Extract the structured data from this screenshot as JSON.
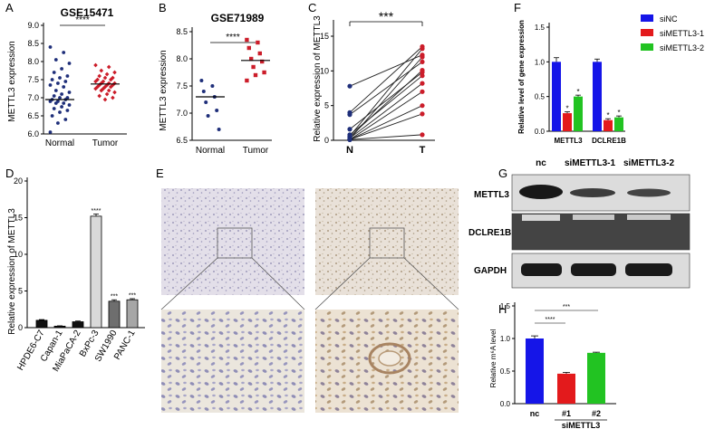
{
  "panels": {
    "A": {
      "letter": "A",
      "title": "GSE15471",
      "ylabel": "METTL3 expression",
      "sig": "****",
      "categories": [
        "Normal",
        "Tumor"
      ],
      "yticks": [
        "6.0",
        "6.5",
        "7.0",
        "7.5",
        "8.0",
        "8.5",
        "9.0"
      ]
    },
    "B": {
      "letter": "B",
      "title": "GSE71989",
      "ylabel": "METTL3 expression",
      "sig": "****",
      "categories": [
        "Normal",
        "Tumor"
      ],
      "yticks": [
        "6.5",
        "7.0",
        "7.5",
        "8.0",
        "8.5"
      ]
    },
    "C": {
      "letter": "C",
      "ylabel": "Relative expression of METTL3",
      "sig": "***",
      "categories": [
        "N",
        "T"
      ],
      "yticks": [
        "0",
        "5",
        "10",
        "15"
      ]
    },
    "D": {
      "letter": "D",
      "ylabel": "Relative expression of METTL3",
      "yticks": [
        "0",
        "5",
        "10",
        "15",
        "20"
      ],
      "categories": [
        "HPDE6-C7",
        "Capan-1",
        "MiaPaCA-2",
        "BxPc-3",
        "SW1990",
        "PANC-1"
      ],
      "bar_sigs": [
        "",
        "",
        "",
        "****",
        "***",
        "***"
      ]
    },
    "E": {
      "letter": "E"
    },
    "F": {
      "letter": "F",
      "ylabel": "Relative level of gene expression",
      "yticks": [
        "0.0",
        "0.5",
        "1.0",
        "1.5"
      ],
      "categories": [
        "METTL3",
        "DCLRE1B"
      ],
      "legend": [
        "siNC",
        "siMETTL3-1",
        "siMETTL3-2"
      ],
      "sig": "*"
    },
    "G": {
      "letter": "G",
      "lanes": [
        "nc",
        "siMETTL3-1",
        "siMETTL3-2"
      ],
      "rows": [
        "METTL3",
        "DCLRE1B",
        "GAPDH"
      ]
    },
    "H": {
      "letter": "H",
      "ylabel": "Relative m⁶A level",
      "yticks": [
        "0.0",
        "0.5",
        "1.0",
        "1.5"
      ],
      "categories": [
        "nc",
        "#1",
        "#2"
      ],
      "group_label": "siMETTL3",
      "sigs": [
        "****",
        "***"
      ]
    }
  },
  "colors": {
    "navy": "#1f2f7a",
    "red": "#cc1d2a",
    "blue": "#1515e8",
    "red_bar": "#e31a1c",
    "green": "#22c322",
    "lightgray": "#d9d9d9",
    "darkgray": "#6e6e6e",
    "midgray": "#a6a6a6"
  },
  "chart_data": [
    {
      "type": "scatter",
      "panel": "A",
      "title": "GSE15471",
      "ylabel": "METTL3 expression",
      "categories": [
        "Normal",
        "Tumor"
      ],
      "ylim": [
        6.0,
        9.0
      ],
      "series": [
        {
          "values": [
            8.4,
            8.25,
            8.05,
            7.95,
            7.8,
            7.7,
            7.6,
            7.55,
            7.5,
            7.45,
            7.4,
            7.35,
            7.3,
            7.2,
            7.15,
            7.1,
            7.05,
            7.0,
            7.0,
            6.95,
            6.95,
            6.9,
            6.9,
            6.85,
            6.85,
            6.8,
            6.75,
            6.7,
            6.65,
            6.6,
            6.5,
            6.4,
            6.3,
            6.05
          ]
        },
        {
          "values": [
            7.9,
            7.85,
            7.75,
            7.7,
            7.65,
            7.6,
            7.55,
            7.55,
            7.5,
            7.5,
            7.45,
            7.45,
            7.4,
            7.4,
            7.4,
            7.35,
            7.35,
            7.35,
            7.3,
            7.3,
            7.3,
            7.25,
            7.25,
            7.2,
            7.2,
            7.15,
            7.1,
            7.05,
            7.0,
            6.95
          ]
        }
      ],
      "medians": [
        6.95,
        7.38
      ]
    },
    {
      "type": "scatter",
      "panel": "B",
      "title": "GSE71989",
      "ylabel": "METTL3 expression",
      "categories": [
        "Normal",
        "Tumor"
      ],
      "ylim": [
        6.5,
        8.5
      ],
      "series": [
        {
          "values": [
            7.6,
            7.5,
            7.4,
            7.3,
            7.2,
            7.05,
            6.95,
            6.7
          ]
        },
        {
          "values": [
            8.35,
            8.3,
            8.2,
            8.1,
            8.0,
            7.95,
            7.85,
            7.75,
            7.7,
            7.6
          ]
        }
      ],
      "medians": [
        7.3,
        7.97
      ]
    },
    {
      "type": "line",
      "panel": "C",
      "ylabel": "Relative expression of METTL3",
      "categories": [
        "N",
        "T"
      ],
      "ylim": [
        0,
        15
      ],
      "pairs": [
        [
          7.8,
          12.3
        ],
        [
          4.0,
          13.5
        ],
        [
          3.7,
          11.3
        ],
        [
          1.6,
          9.8
        ],
        [
          0.8,
          9.3
        ],
        [
          0.6,
          13.2
        ],
        [
          0.5,
          10.1
        ],
        [
          0.3,
          8.2
        ],
        [
          0.2,
          12.0
        ],
        [
          0.1,
          7.0
        ],
        [
          0.1,
          5.0
        ],
        [
          0.1,
          3.8
        ],
        [
          0.1,
          0.8
        ]
      ]
    },
    {
      "type": "bar",
      "panel": "D",
      "ylabel": "Relative expression of METTL3",
      "categories": [
        "HPDE6-C7",
        "Capan-1",
        "MiaPaCA-2",
        "BxPc-3",
        "SW1990",
        "PANC-1"
      ],
      "values": [
        1.0,
        0.2,
        0.8,
        15.2,
        3.6,
        3.8
      ],
      "errors": [
        0.1,
        0.05,
        0.1,
        0.3,
        0.2,
        0.15
      ],
      "ylim": [
        0,
        20
      ]
    },
    {
      "type": "bar",
      "panel": "F",
      "ylabel": "Relative level of gene expression",
      "categories": [
        "METTL3",
        "DCLRE1B"
      ],
      "ylim": [
        0,
        1.5
      ],
      "series": [
        {
          "name": "siNC",
          "values": [
            1.0,
            1.0
          ],
          "errors": [
            0.06,
            0.04
          ]
        },
        {
          "name": "siMETTL3-1",
          "values": [
            0.26,
            0.16
          ],
          "errors": [
            0.02,
            0.02
          ]
        },
        {
          "name": "siMETTL3-2",
          "values": [
            0.5,
            0.2
          ],
          "errors": [
            0.02,
            0.02
          ]
        }
      ]
    },
    {
      "type": "bar",
      "panel": "H",
      "ylabel": "Relative m⁶A level",
      "categories": [
        "nc",
        "#1",
        "#2"
      ],
      "values": [
        1.0,
        0.46,
        0.78
      ],
      "errors": [
        0.04,
        0.02,
        0.01
      ],
      "ylim": [
        0,
        1.5
      ]
    }
  ]
}
